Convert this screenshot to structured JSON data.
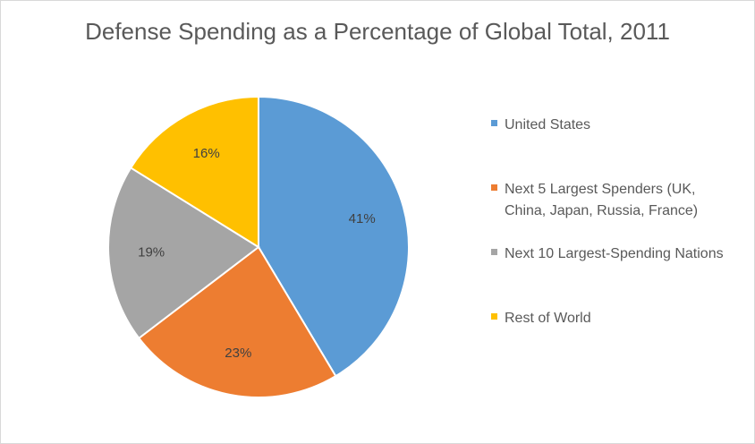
{
  "chart_data": {
    "type": "pie",
    "title": "Defense Spending as a Percentage of Global Total, 2011",
    "categories": [
      "United States",
      "Next 5 Largest Spenders (UK, China, Japan, Russia, France)",
      "Next 10 Largest-Spending Nations",
      "Rest of World"
    ],
    "values": [
      41,
      23,
      19,
      16
    ],
    "data_labels": [
      "41%",
      "23%",
      "19%",
      "16%"
    ],
    "colors": [
      "#5b9bd5",
      "#ed7d31",
      "#a5a5a5",
      "#ffc000"
    ],
    "legend_position": "right"
  }
}
